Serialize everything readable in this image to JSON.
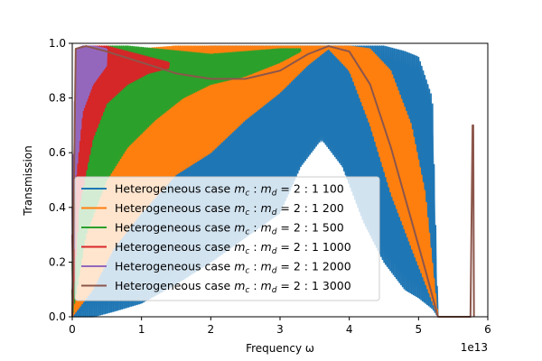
{
  "chart_data": {
    "type": "line",
    "xlabel": "Frequency ω",
    "ylabel": "Transmission",
    "x_offset_label": "1e13",
    "xlim": [
      0,
      6
    ],
    "ylim": [
      0,
      1.0
    ],
    "x_ticks": [
      0,
      1,
      2,
      3,
      4,
      5,
      6
    ],
    "y_ticks": [
      0.0,
      0.2,
      0.4,
      0.6,
      0.8,
      1.0
    ],
    "x_tick_labels": [
      "0",
      "1",
      "2",
      "3",
      "4",
      "5",
      "6"
    ],
    "y_tick_labels": [
      "0.0",
      "0.2",
      "0.4",
      "0.6",
      "0.8",
      "1.0"
    ],
    "grid": false,
    "legend_position": "lower-left",
    "series": [
      {
        "name": "Heterogeneous case m_c : m_d = 2 : 1 100",
        "legend_label": "Heterogeneous case ",
        "legend_math": "m_c : m_d = 2 : 1 100",
        "color": "#1f77b4",
        "x": [
          0.0,
          0.3,
          0.6,
          1.0,
          1.5,
          2.0,
          2.5,
          3.0,
          3.3,
          3.6,
          3.9,
          4.2,
          4.5,
          4.8,
          5.0,
          5.2,
          5.28
        ],
        "y_upper": [
          0.1,
          0.95,
          0.97,
          0.98,
          0.98,
          0.99,
          0.99,
          0.99,
          0.99,
          0.99,
          0.99,
          0.99,
          0.99,
          0.97,
          0.95,
          0.8,
          0.0
        ],
        "y_lower": [
          0.0,
          0.0,
          0.02,
          0.05,
          0.12,
          0.2,
          0.29,
          0.38,
          0.55,
          0.65,
          0.55,
          0.35,
          0.2,
          0.1,
          0.07,
          0.03,
          0.0
        ]
      },
      {
        "name": "Heterogeneous case m_c : m_d = 2 : 1 200",
        "legend_label": "Heterogeneous case ",
        "legend_math": "m_c : m_d = 2 : 1 200",
        "color": "#ff7f0e",
        "x": [
          0.0,
          0.3,
          0.6,
          1.0,
          1.5,
          2.0,
          2.5,
          3.0,
          3.4,
          3.7,
          4.0,
          4.3,
          4.6,
          4.9,
          5.1,
          5.28
        ],
        "y_upper": [
          0.1,
          0.96,
          0.98,
          0.98,
          0.99,
          0.99,
          0.99,
          0.99,
          0.99,
          0.99,
          0.99,
          0.98,
          0.9,
          0.7,
          0.45,
          0.0
        ],
        "y_lower": [
          0.0,
          0.1,
          0.25,
          0.38,
          0.52,
          0.6,
          0.72,
          0.82,
          0.92,
          0.98,
          0.9,
          0.7,
          0.45,
          0.25,
          0.12,
          0.0
        ]
      },
      {
        "name": "Heterogeneous case m_c : m_d = 2 : 1 500",
        "legend_label": "Heterogeneous case ",
        "legend_math": "m_c : m_d = 2 : 1 500",
        "color": "#2ca02c",
        "x": [
          0.0,
          0.2,
          0.5,
          0.8,
          1.2,
          1.6,
          2.0,
          2.5,
          3.0,
          3.3
        ],
        "y_upper": [
          0.2,
          0.96,
          0.99,
          0.99,
          0.98,
          0.97,
          0.96,
          0.97,
          0.98,
          0.98
        ],
        "y_lower": [
          0.0,
          0.3,
          0.5,
          0.62,
          0.72,
          0.8,
          0.85,
          0.88,
          0.93,
          0.97
        ]
      },
      {
        "name": "Heterogeneous case m_c : m_d = 2 : 1 1000",
        "legend_label": "Heterogeneous case ",
        "legend_math": "m_c : m_d = 2 : 1 1000",
        "color": "#d62728",
        "x": [
          0.0,
          0.1,
          0.3,
          0.5,
          0.8,
          1.1,
          1.4
        ],
        "y_upper": [
          0.3,
          0.97,
          0.99,
          0.99,
          0.97,
          0.95,
          0.93
        ],
        "y_lower": [
          0.0,
          0.4,
          0.65,
          0.78,
          0.85,
          0.89,
          0.91
        ]
      },
      {
        "name": "Heterogeneous case m_c : m_d = 2 : 1 2000",
        "legend_label": "Heterogeneous case ",
        "legend_math": "m_c : m_d = 2 : 1 2000",
        "color": "#9467bd",
        "x": [
          0.0,
          0.05,
          0.15,
          0.3,
          0.5
        ],
        "y_upper": [
          0.4,
          0.98,
          0.99,
          0.99,
          0.98
        ],
        "y_lower": [
          0.0,
          0.5,
          0.75,
          0.85,
          0.92
        ]
      },
      {
        "name": "Heterogeneous case m_c : m_d = 2 : 1 3000",
        "legend_label": "Heterogeneous case ",
        "legend_math": "m_c : m_d = 2 : 1 3000",
        "color": "#8c564b",
        "x": [
          0.0,
          0.05,
          0.2,
          0.5,
          1.0,
          1.5,
          2.0,
          2.5,
          3.0,
          3.4,
          3.7,
          4.0,
          4.3,
          4.6,
          4.9,
          5.1,
          5.28,
          5.75,
          5.78,
          5.79,
          5.8
        ],
        "y": [
          0.0,
          0.98,
          0.99,
          0.97,
          0.93,
          0.89,
          0.87,
          0.87,
          0.9,
          0.96,
          0.99,
          0.97,
          0.85,
          0.62,
          0.35,
          0.17,
          0.0,
          0.0,
          0.7,
          0.7,
          0.0
        ]
      }
    ]
  }
}
